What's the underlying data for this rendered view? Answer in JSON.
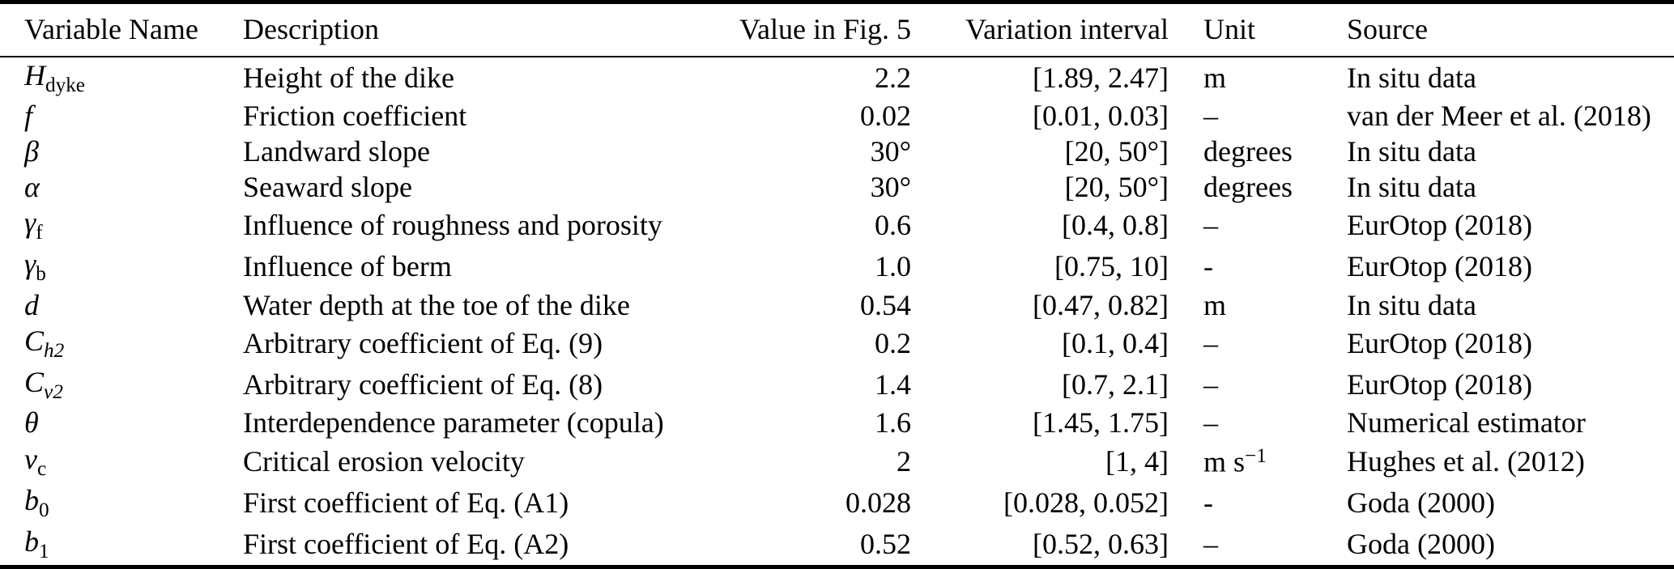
{
  "page": {
    "background_color": "#ffffff",
    "text_color": "#000000",
    "rule_color": "#000000"
  },
  "table": {
    "columns": [
      {
        "key": "variable-name",
        "label": "Variable Name"
      },
      {
        "key": "description",
        "label": "Description"
      },
      {
        "key": "value-in-fig-5",
        "label": "Value in Fig. 5"
      },
      {
        "key": "variation-interval",
        "label": "Variation interval"
      },
      {
        "key": "unit",
        "label": "Unit"
      },
      {
        "key": "source",
        "label": "Source"
      }
    ],
    "rows": [
      {
        "variable": {
          "base": "H",
          "sub": "dyke",
          "sub_style": "roman"
        },
        "description": "Height of the dike",
        "value": "2.2",
        "interval": "[1.89, 2.47]",
        "unit": {
          "base": "m",
          "sup": ""
        },
        "source": "In situ data"
      },
      {
        "variable": {
          "base": "f",
          "sub": "",
          "sub_style": ""
        },
        "description": "Friction coefficient",
        "value": "0.02",
        "interval": "[0.01, 0.03]",
        "unit": {
          "base": "–",
          "sup": ""
        },
        "source": "van der Meer et al. (2018)"
      },
      {
        "variable": {
          "base": "β",
          "sub": "",
          "sub_style": ""
        },
        "description": "Landward slope",
        "value": "30°",
        "interval": "[20, 50°]",
        "unit": {
          "base": "degrees",
          "sup": ""
        },
        "source": "In situ data"
      },
      {
        "variable": {
          "base": "α",
          "sub": "",
          "sub_style": ""
        },
        "description": "Seaward slope",
        "value": "30°",
        "interval": "[20, 50°]",
        "unit": {
          "base": "degrees",
          "sup": ""
        },
        "source": "In situ data"
      },
      {
        "variable": {
          "base": "γ",
          "sub": "f",
          "sub_style": "roman"
        },
        "description": "Influence of roughness and porosity",
        "value": "0.6",
        "interval": "[0.4, 0.8]",
        "unit": {
          "base": "–",
          "sup": ""
        },
        "source": "EurOtop (2018)"
      },
      {
        "variable": {
          "base": "γ",
          "sub": "b",
          "sub_style": "roman"
        },
        "description": "Influence of berm",
        "value": "1.0",
        "interval": "[0.75, 10]",
        "unit": {
          "base": "-",
          "sup": ""
        },
        "source": "EurOtop (2018)"
      },
      {
        "variable": {
          "base": "d",
          "sub": "",
          "sub_style": ""
        },
        "description": "Water depth at the toe of the dike",
        "value": "0.54",
        "interval": "[0.47, 0.82]",
        "unit": {
          "base": "m",
          "sup": ""
        },
        "source": "In situ data"
      },
      {
        "variable": {
          "base": "C",
          "sub": "h2",
          "sub_style": "italic"
        },
        "description": "Arbitrary coefficient of Eq. (9)",
        "value": "0.2",
        "interval": "[0.1, 0.4]",
        "unit": {
          "base": "–",
          "sup": ""
        },
        "source": "EurOtop (2018)"
      },
      {
        "variable": {
          "base": "C",
          "sub": "v2",
          "sub_style": "italic"
        },
        "description": "Arbitrary coefficient of Eq. (8)",
        "value": "1.4",
        "interval": "[0.7, 2.1]",
        "unit": {
          "base": "–",
          "sup": ""
        },
        "source": "EurOtop (2018)"
      },
      {
        "variable": {
          "base": "θ",
          "sub": "",
          "sub_style": ""
        },
        "description": "Interdependence parameter (copula)",
        "value": "1.6",
        "interval": "[1.45, 1.75]",
        "unit": {
          "base": "–",
          "sup": ""
        },
        "source": "Numerical estimator"
      },
      {
        "variable": {
          "base": "v",
          "sub": "c",
          "sub_style": "roman"
        },
        "description": "Critical erosion velocity",
        "value": "2",
        "interval": "[1, 4]",
        "unit": {
          "base": "m s",
          "sup": "−1"
        },
        "source": "Hughes et al. (2012)"
      },
      {
        "variable": {
          "base": "b",
          "sub": "0",
          "sub_style": "roman"
        },
        "description": "First coefficient of Eq. (A1)",
        "value": "0.028",
        "interval": "[0.028, 0.052]",
        "unit": {
          "base": "-",
          "sup": ""
        },
        "source": "Goda (2000)"
      },
      {
        "variable": {
          "base": "b",
          "sub": "1",
          "sub_style": "roman"
        },
        "description": "First coefficient of Eq. (A2)",
        "value": "0.52",
        "interval": "[0.52, 0.63]",
        "unit": {
          "base": "–",
          "sup": ""
        },
        "source": "Goda (2000)"
      }
    ]
  }
}
